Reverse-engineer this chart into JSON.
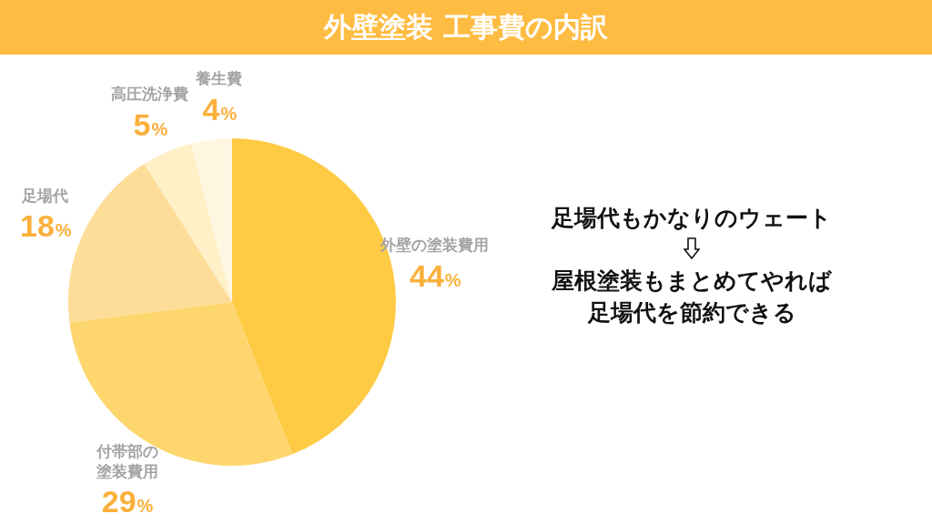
{
  "chart_data": {
    "type": "pie",
    "title": "外壁塗装 工事費の内訳",
    "categories": [
      "外壁の塗装費用",
      "付帯部の塗装費用",
      "足場代",
      "高圧洗浄費",
      "養生費"
    ],
    "values": [
      44,
      29,
      18,
      5,
      4
    ],
    "colors": [
      "#ffcb45",
      "#fed66e",
      "#fddd98",
      "#fff0c8",
      "#fff6e2"
    ],
    "value_labels": [
      "44%",
      "29%",
      "18%",
      "5%",
      "4%"
    ],
    "annotations": [
      "足場代もかなりのウェート",
      "屋根塗装もまとめてやれば",
      "足場代を節約できる"
    ]
  }
}
